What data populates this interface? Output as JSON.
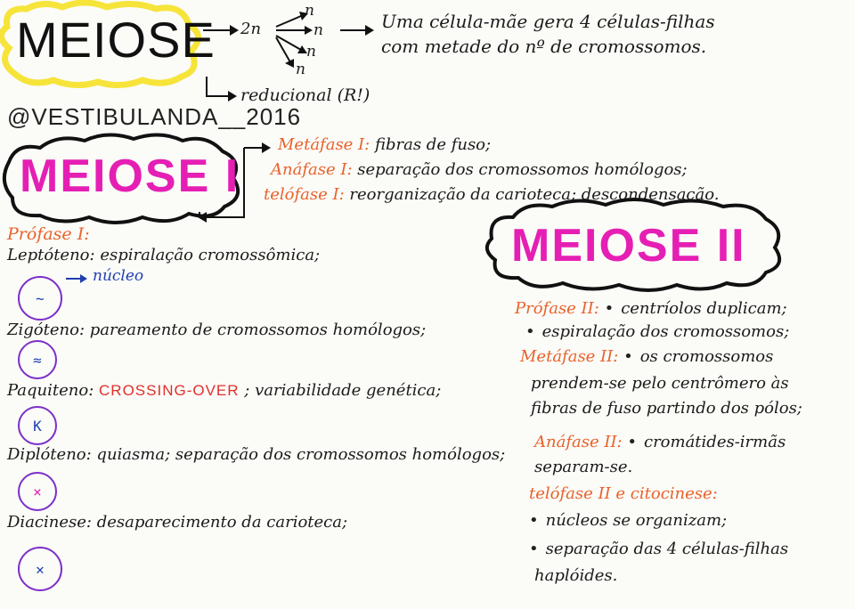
{
  "header": {
    "title": "MEIOSE",
    "arrow_labels": [
      "2n",
      "n",
      "n",
      "n",
      "n"
    ],
    "description_line1": "Uma célula-mãe gera 4 células-filhas",
    "description_line2": "com metade do nº de cromossomos.",
    "reducional": "reducional (R!)",
    "handle": "@VESTIBULANDA__2016"
  },
  "meiose1": {
    "title": "MEIOSE I",
    "metafase": {
      "label": "Metáfase I:",
      "text": "fibras de fuso;"
    },
    "anafase": {
      "label": "Anáfase I:",
      "text": "separação dos cromossomos homólogos;"
    },
    "telofase": {
      "label": "telófase I:",
      "text": "reorganização da carioteca; descondensação."
    },
    "profase_label": "Prófase I:",
    "leptoteno": {
      "label": "Leptóteno:",
      "text": "espiralação cromossômica;"
    },
    "nucleo_note": "núcleo",
    "zigoteno": {
      "label": "Zigóteno:",
      "text": "pareamento de cromossomos homólogos;"
    },
    "paquiteno": {
      "label": "Paquiteno:",
      "highlight": "CROSSING-OVER",
      "text": "; variabilidade genética;"
    },
    "diploteno": {
      "label": "Diplóteno:",
      "text": "quiasma; separação dos cromossomos homólogos;"
    },
    "diacinese": {
      "label": "Diacinese:",
      "text": "desaparecimento da carioteca;"
    }
  },
  "meiose2": {
    "title": "MEIOSE II",
    "profase": {
      "label": "Prófase II:",
      "text": "centríolos duplicam;"
    },
    "profase_bullet": "espiralação dos cromossomos;",
    "metafase": {
      "label": "Metáfase II:",
      "text": "os cromossomos"
    },
    "metafase_line2": "prendem-se pelo centrômero às",
    "metafase_line3": "fibras de fuso partindo dos pólos;",
    "anafase": {
      "label": "Anáfase II:",
      "text": "cromátides-irmãs"
    },
    "anafase_line2": "separam-se.",
    "telofase_label": "telófase II e citocinese:",
    "telofase_bullet1": "núcleos se organizam;",
    "telofase_bullet2": "separação das 4 células-filhas",
    "telofase_bullet2_line2": "haplóides."
  },
  "colors": {
    "accent_pink": "#e51fb4",
    "accent_orange": "#e8622a",
    "accent_red": "#e0302a",
    "cloud_yellow": "#f6e43a",
    "cell_outline": "#7b2fc9"
  }
}
